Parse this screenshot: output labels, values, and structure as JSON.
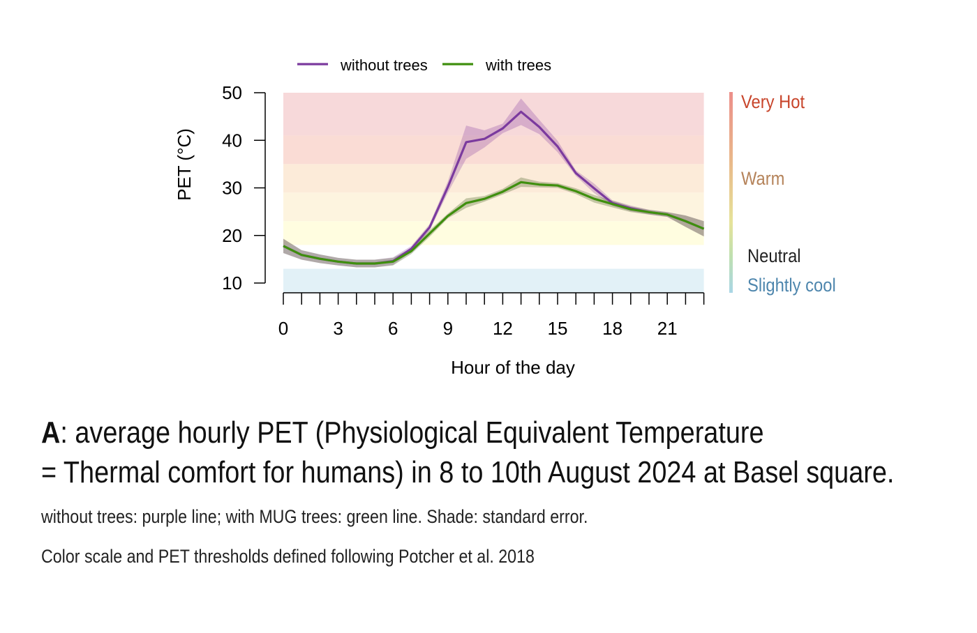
{
  "chart_data": {
    "type": "line",
    "xlabel": "Hour of the day",
    "ylabel": "PET (°C)",
    "xlim": [
      0,
      23
    ],
    "ylim": [
      8,
      50
    ],
    "xticks": [
      0,
      3,
      6,
      9,
      12,
      15,
      18,
      21
    ],
    "yticks": [
      10,
      20,
      30,
      40,
      50
    ],
    "legend_placement": "top",
    "x": [
      0,
      1,
      2,
      3,
      4,
      5,
      6,
      7,
      8,
      9,
      10,
      11,
      12,
      13,
      14,
      15,
      16,
      17,
      18,
      19,
      20,
      21,
      22,
      23
    ],
    "series": [
      {
        "name": "without trees",
        "color": "#7b3a9e",
        "values": [
          17.8,
          15.9,
          15.1,
          14.5,
          14.1,
          14.1,
          14.6,
          17.2,
          21.7,
          30.2,
          39.6,
          40.3,
          42.5,
          46.0,
          42.8,
          38.7,
          33.1,
          29.9,
          26.8,
          25.7,
          24.9,
          24.4,
          23.0,
          21.4
        ],
        "se": [
          1.5,
          1.0,
          0.9,
          0.8,
          0.8,
          0.8,
          0.8,
          0.6,
          0.7,
          1.2,
          3.5,
          1.8,
          1.0,
          2.8,
          1.5,
          1.2,
          0.6,
          1.0,
          0.6,
          0.6,
          0.5,
          0.5,
          1.2,
          1.6
        ]
      },
      {
        "name": "with trees",
        "color": "#3f8f0e",
        "values": [
          17.8,
          15.9,
          15.1,
          14.5,
          14.1,
          14.1,
          14.5,
          16.7,
          20.4,
          24.1,
          26.8,
          27.7,
          29.2,
          31.2,
          30.7,
          30.5,
          29.3,
          27.7,
          26.6,
          25.5,
          24.9,
          24.4,
          23.0,
          21.4
        ],
        "se": [
          1.5,
          1.0,
          0.9,
          0.8,
          0.8,
          0.8,
          0.8,
          0.6,
          0.7,
          0.5,
          1.0,
          0.6,
          0.6,
          1.0,
          0.6,
          0.5,
          0.6,
          0.8,
          0.7,
          0.6,
          0.5,
          0.5,
          1.2,
          1.6
        ]
      }
    ],
    "comfort_bands": [
      {
        "from": 41,
        "to": 50,
        "color": "#f7d9da"
      },
      {
        "from": 35,
        "to": 41,
        "color": "#fadcd5"
      },
      {
        "from": 29,
        "to": 35,
        "color": "#fcebd9"
      },
      {
        "from": 23,
        "to": 29,
        "color": "#fdf4df"
      },
      {
        "from": 18,
        "to": 23,
        "color": "#fffde0"
      },
      {
        "from": 8,
        "to": 13,
        "color": "#e2f1f7"
      }
    ],
    "scale_labels": [
      {
        "label": "Very Hot",
        "color": "#c8452b"
      },
      {
        "label": "Warm",
        "color": "#b5835a"
      },
      {
        "label": "Neutral",
        "color": "#222222"
      },
      {
        "label": "Slightly cool",
        "color": "#4e86ad"
      }
    ]
  },
  "caption": {
    "bold": "A",
    "line1": ": average hourly PET (Physiological Equivalent Temperature",
    "line2": "= Thermal comfort for humans) in 8 to 10th August 2024 at Basel square.",
    "line3": "without trees: purple line; with MUG trees: green line.  Shade: standard error.",
    "line4": "Color scale and PET thresholds defined following Potcher et al. 2018"
  }
}
